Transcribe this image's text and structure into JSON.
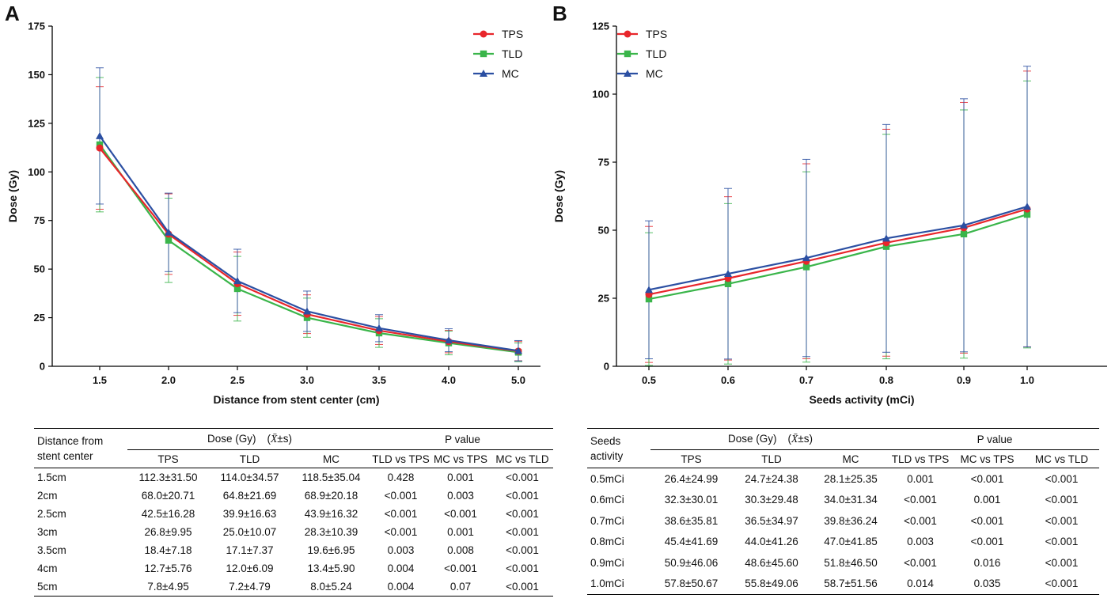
{
  "panels": [
    {
      "letter": "A",
      "chart_data": {
        "type": "line",
        "title": "",
        "xlabel": "Distance from stent center (cm)",
        "ylabel": "Dose (Gy)",
        "categories": [
          "1.5",
          "2.0",
          "2.5",
          "3.0",
          "3.5",
          "4.0",
          "5.0"
        ],
        "ylim": [
          0,
          175
        ],
        "yticks": [
          0,
          25,
          50,
          75,
          100,
          125,
          150,
          175
        ],
        "legend_position": "top-right",
        "series": [
          {
            "name": "TPS",
            "color": "#e8262b",
            "marker": "circle",
            "values": [
              112.3,
              68.0,
              42.5,
              26.8,
              18.4,
              12.7,
              7.8
            ],
            "errors": [
              31.5,
              20.71,
              16.28,
              9.95,
              7.18,
              5.76,
              4.95
            ]
          },
          {
            "name": "TLD",
            "color": "#3ab54a",
            "marker": "square",
            "values": [
              114.0,
              64.8,
              39.9,
              25.0,
              17.1,
              12.0,
              7.2
            ],
            "errors": [
              34.57,
              21.69,
              16.63,
              10.07,
              7.37,
              6.09,
              4.79
            ]
          },
          {
            "name": "MC",
            "color": "#2b4fa2",
            "marker": "triangle",
            "values": [
              118.5,
              68.9,
              43.9,
              28.3,
              19.6,
              13.4,
              8.0
            ],
            "errors": [
              35.04,
              20.18,
              16.32,
              10.39,
              6.95,
              5.9,
              5.24
            ]
          }
        ]
      },
      "table": {
        "first_header": [
          "Distance from",
          "stent center"
        ],
        "dose_group": "Dose (Gy)",
        "stat_symbol": "X̄",
        "stat_suffix": "±s",
        "p_group": "P value",
        "subheaders": [
          "TPS",
          "TLD",
          "MC",
          "TLD vs TPS",
          "MC vs TPS",
          "MC vs TLD"
        ],
        "rows": [
          [
            "1.5cm",
            "112.3±31.50",
            "114.0±34.57",
            "118.5±35.04",
            "0.428",
            "0.001",
            "<0.001"
          ],
          [
            "2cm",
            "68.0±20.71",
            "64.8±21.69",
            "68.9±20.18",
            "<0.001",
            "0.003",
            "<0.001"
          ],
          [
            "2.5cm",
            "42.5±16.28",
            "39.9±16.63",
            "43.9±16.32",
            "<0.001",
            "<0.001",
            "<0.001"
          ],
          [
            "3cm",
            "26.8±9.95",
            "25.0±10.07",
            "28.3±10.39",
            "<0.001",
            "0.001",
            "<0.001"
          ],
          [
            "3.5cm",
            "18.4±7.18",
            "17.1±7.37",
            "19.6±6.95",
            "0.003",
            "0.008",
            "<0.001"
          ],
          [
            "4cm",
            "12.7±5.76",
            "12.0±6.09",
            "13.4±5.90",
            "0.004",
            "<0.001",
            "<0.001"
          ],
          [
            "5cm",
            "7.8±4.95",
            "7.2±4.79",
            "8.0±5.24",
            "0.004",
            "0.07",
            "<0.001"
          ]
        ]
      }
    },
    {
      "letter": "B",
      "chart_data": {
        "type": "line",
        "title": "",
        "xlabel": "Seeds activity (mCi)",
        "ylabel": "Dose (Gy)",
        "categories": [
          "0.5",
          "0.6",
          "0.7",
          "0.8",
          "0.9",
          "1.0"
        ],
        "ylim": [
          0,
          125
        ],
        "yticks": [
          0,
          25,
          50,
          75,
          100,
          125
        ],
        "legend_position": "top-left",
        "series": [
          {
            "name": "TPS",
            "color": "#e8262b",
            "marker": "circle",
            "values": [
              26.4,
              32.3,
              38.6,
              45.4,
              50.9,
              57.8
            ],
            "errors": [
              24.99,
              30.01,
              35.81,
              41.69,
              46.06,
              50.67
            ]
          },
          {
            "name": "TLD",
            "color": "#3ab54a",
            "marker": "square",
            "values": [
              24.7,
              30.3,
              36.5,
              44.0,
              48.6,
              55.8
            ],
            "errors": [
              24.38,
              29.48,
              34.97,
              41.26,
              45.6,
              49.06
            ]
          },
          {
            "name": "MC",
            "color": "#2b4fa2",
            "marker": "triangle",
            "values": [
              28.1,
              34.0,
              39.8,
              47.0,
              51.8,
              58.7
            ],
            "errors": [
              25.35,
              31.34,
              36.24,
              41.85,
              46.5,
              51.56
            ]
          }
        ]
      },
      "table": {
        "first_header": [
          "Seeds",
          "activity"
        ],
        "dose_group": "Dose (Gy)",
        "stat_symbol": "X̄",
        "stat_suffix": "±s",
        "p_group": "P value",
        "subheaders": [
          "TPS",
          "TLD",
          "MC",
          "TLD vs TPS",
          "MC vs TPS",
          "MC vs TLD"
        ],
        "rows": [
          [
            "0.5mCi",
            "26.4±24.99",
            "24.7±24.38",
            "28.1±25.35",
            "0.001",
            "<0.001",
            "<0.001"
          ],
          [
            "0.6mCi",
            "32.3±30.01",
            "30.3±29.48",
            "34.0±31.34",
            "<0.001",
            "0.001",
            "<0.001"
          ],
          [
            "0.7mCi",
            "38.6±35.81",
            "36.5±34.97",
            "39.8±36.24",
            "<0.001",
            "<0.001",
            "<0.001"
          ],
          [
            "0.8mCi",
            "45.4±41.69",
            "44.0±41.26",
            "47.0±41.85",
            "0.003",
            "<0.001",
            "<0.001"
          ],
          [
            "0.9mCi",
            "50.9±46.06",
            "48.6±45.60",
            "51.8±46.50",
            "<0.001",
            "0.016",
            "<0.001"
          ],
          [
            "1.0mCi",
            "57.8±50.67",
            "55.8±49.06",
            "58.7±51.56",
            "0.014",
            "0.035",
            "<0.001"
          ]
        ]
      }
    }
  ]
}
